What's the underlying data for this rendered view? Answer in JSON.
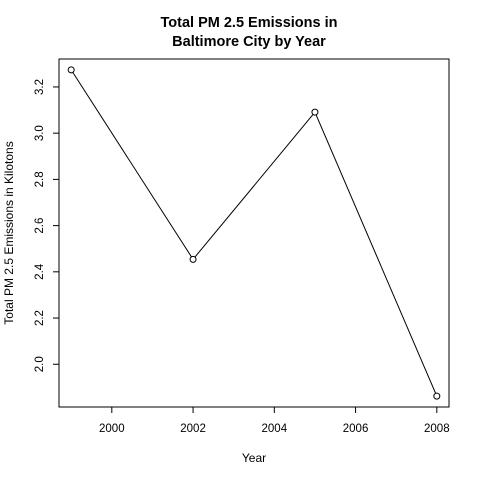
{
  "chart_data": {
    "type": "line",
    "title_lines": [
      "Total PM 2.5 Emissions in",
      "Baltimore City by Year"
    ],
    "xlabel": "Year",
    "ylabel": "Total PM 2.5 Emissions in Kilotons",
    "x": [
      1999,
      2002,
      2005,
      2008
    ],
    "y": [
      3.274,
      2.454,
      3.091,
      1.862
    ],
    "xlim": [
      1998.7,
      2008.3
    ],
    "ylim": [
      1.815,
      3.321
    ],
    "x_ticks": [
      2000,
      2002,
      2004,
      2006,
      2008
    ],
    "x_tick_labels": [
      "2000",
      "2002",
      "2004",
      "2006",
      "2008"
    ],
    "y_ticks": [
      2.0,
      2.2,
      2.4,
      2.6,
      2.8,
      3.0,
      3.2
    ],
    "y_tick_labels": [
      "2.0",
      "2.2",
      "2.4",
      "2.6",
      "2.8",
      "3.0",
      "3.2"
    ],
    "grid": false,
    "marker": "open-circle",
    "line_color": "#000000"
  }
}
